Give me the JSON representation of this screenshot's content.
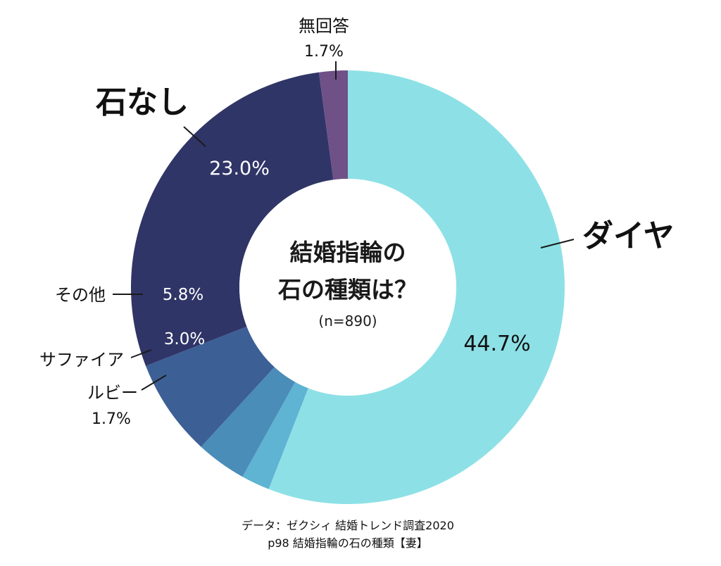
{
  "chart_data": {
    "type": "pie",
    "donut": true,
    "title": "結婚指輪の\n石の種類は？",
    "title_lines": [
      "結婚指輪の",
      "石の種類は？"
    ],
    "subtitle": "(n=890)",
    "slices": [
      {
        "label": "ダイヤ",
        "value": 44.7,
        "value_text": "44.7%",
        "color": "#8de1e6"
      },
      {
        "label": "ルビー",
        "value": 1.7,
        "value_text": "1.7%",
        "color": "#5fb3d3"
      },
      {
        "label": "サファイア",
        "value": 3.0,
        "value_text": "3.0%",
        "color": "#4a8db8"
      },
      {
        "label": "その他",
        "value": 5.8,
        "value_text": "5.8%",
        "color": "#3c5f96"
      },
      {
        "label": "石なし",
        "value": 23.0,
        "value_text": "23.0%",
        "color": "#303567"
      },
      {
        "label": "無回答",
        "value": 1.7,
        "value_text": "1.7%",
        "color": "#6f5187"
      }
    ]
  },
  "source_lines": [
    "データ：ゼクシィ 結婚トレンド調査2020",
    "p98 結婚指輪の石の種類【妻】"
  ]
}
